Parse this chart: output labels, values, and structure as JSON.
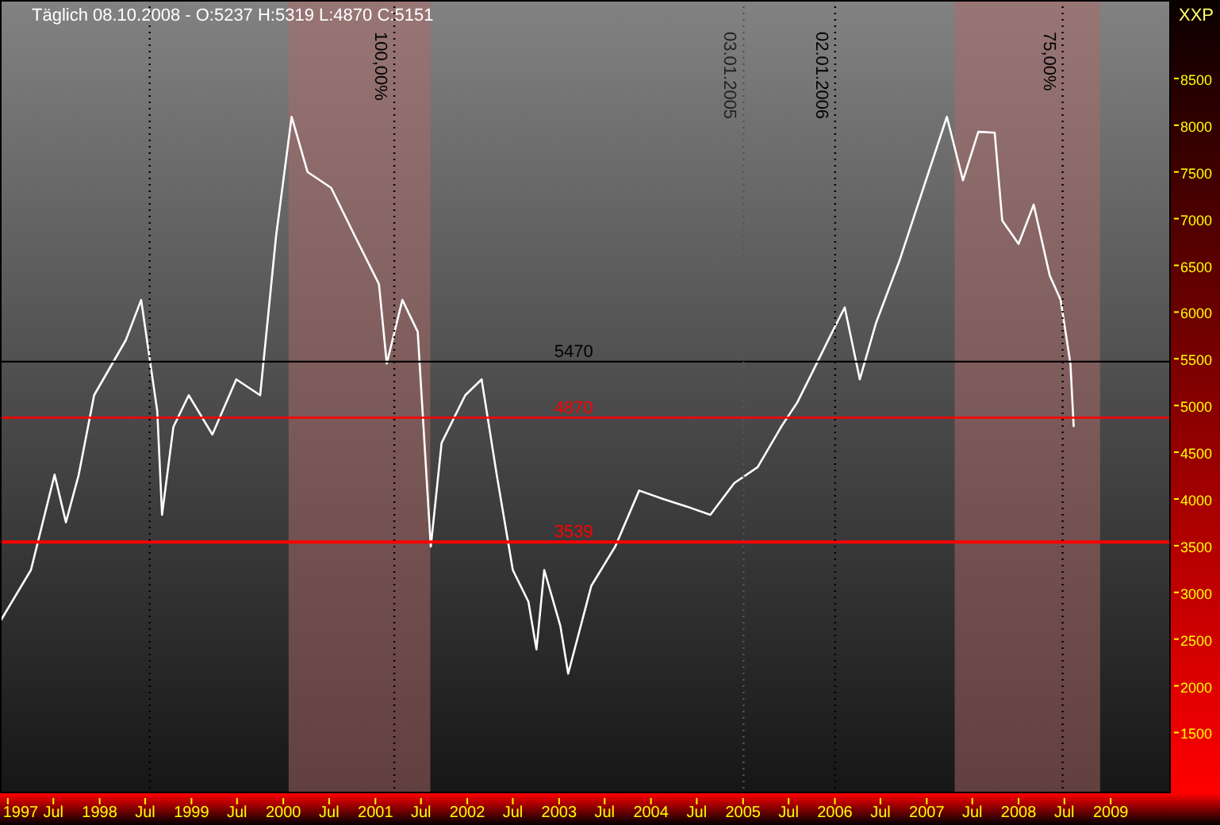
{
  "chart_data": {
    "type": "line",
    "title": "Täglich 08.10.2008 - O:5237 H:5319 L:4870 C:5151",
    "ylabel": "XXP",
    "x": [
      "1996-12-02",
      "1997-04-03",
      "1997-07-06",
      "1997-08-20",
      "1997-10-10",
      "1997-12-10",
      "1998-04-15",
      "1998-06-15",
      "1998-08-18",
      "1998-09-06",
      "1998-10-21",
      "1998-12-21",
      "1999-03-25",
      "1999-06-28",
      "1999-10-01",
      "1999-12-03",
      "2000-02-03",
      "2000-04-06",
      "2000-07-09",
      "2000-10-12",
      "2001-01-15",
      "2001-02-15",
      "2001-04-18",
      "2001-06-18",
      "2001-08-09",
      "2001-09-21",
      "2001-12-24",
      "2002-02-27",
      "2002-04-28",
      "2002-07-01",
      "2002-09-01",
      "2002-10-03",
      "2002-11-03",
      "2003-01-06",
      "2003-02-06",
      "2003-05-09",
      "2003-08-12",
      "2003-11-15",
      "2004-02-18",
      "2004-05-21",
      "2004-08-24",
      "2004-11-27",
      "2005-02-28",
      "2005-06-01",
      "2005-08-04",
      "2005-10-06",
      "2005-12-07",
      "2006-02-09",
      "2006-04-10",
      "2006-06-13",
      "2006-09-16",
      "2006-12-19",
      "2007-03-22",
      "2007-05-25",
      "2007-07-25",
      "2007-09-28",
      "2007-10-28",
      "2008-01-01",
      "2008-03-01",
      "2008-05-04",
      "2008-06-16",
      "2008-07-25",
      "2008-08-07"
    ],
    "series": [
      {
        "color": "#ffffff",
        "values": [
          2690,
          3240,
          4260,
          3750,
          4260,
          5110,
          5700,
          6130,
          4940,
          3830,
          4770,
          5110,
          4690,
          5280,
          5110,
          6810,
          8090,
          7500,
          7330,
          6810,
          6300,
          5450,
          6130,
          5790,
          3490,
          4600,
          5110,
          5280,
          4260,
          3240,
          2900,
          2390,
          3240,
          2640,
          2130,
          3070,
          3490,
          4090,
          4000,
          3920,
          3830,
          4170,
          4340,
          4770,
          5030,
          5370,
          5710,
          6050,
          5280,
          5880,
          6560,
          7330,
          8090,
          7410,
          7930,
          7920,
          6980,
          6730,
          7150,
          6390,
          6130,
          5450,
          4770
        ]
      }
    ],
    "xlim": [
      "1996-12-01",
      "2009-08-28"
    ],
    "xticks": [
      {
        "value": "1997-01-01",
        "label": "1997"
      },
      {
        "value": "1997-07-01",
        "label": "Jul"
      },
      {
        "value": "1998-01-01",
        "label": "1998"
      },
      {
        "value": "1998-07-01",
        "label": "Jul"
      },
      {
        "value": "1999-01-01",
        "label": "1999"
      },
      {
        "value": "1999-07-01",
        "label": "Jul"
      },
      {
        "value": "2000-01-01",
        "label": "2000"
      },
      {
        "value": "2000-07-01",
        "label": "Jul"
      },
      {
        "value": "2001-01-01",
        "label": "2001"
      },
      {
        "value": "2001-07-01",
        "label": "Jul"
      },
      {
        "value": "2002-01-01",
        "label": "2002"
      },
      {
        "value": "2002-07-01",
        "label": "Jul"
      },
      {
        "value": "2003-01-01",
        "label": "2003"
      },
      {
        "value": "2003-07-01",
        "label": "Jul"
      },
      {
        "value": "2004-01-01",
        "label": "2004"
      },
      {
        "value": "2004-07-01",
        "label": "Jul"
      },
      {
        "value": "2005-01-01",
        "label": "2005"
      },
      {
        "value": "2005-07-01",
        "label": "Jul"
      },
      {
        "value": "2006-01-01",
        "label": "2006"
      },
      {
        "value": "2006-07-01",
        "label": "Jul"
      },
      {
        "value": "2007-01-01",
        "label": "2007"
      },
      {
        "value": "2007-07-01",
        "label": "Jul"
      },
      {
        "value": "2008-01-01",
        "label": "2008"
      },
      {
        "value": "2008-07-01",
        "label": "Jul"
      },
      {
        "value": "2009-01-01",
        "label": "2009"
      }
    ],
    "ylim": [
      850,
      9340
    ],
    "yticks": [
      1500,
      2000,
      2500,
      3000,
      3500,
      4000,
      4500,
      5000,
      5500,
      6000,
      6500,
      7000,
      7500,
      8000,
      8500
    ],
    "ref_lines": [
      {
        "axis": "y",
        "value": 5470,
        "label": "5470",
        "color": "#000000"
      },
      {
        "axis": "y",
        "value": 4870,
        "label": "4870",
        "color": "#ff0000"
      },
      {
        "axis": "y",
        "value": 3539,
        "label": "3539",
        "color": "#ff0000"
      },
      {
        "axis": "x",
        "value": "1998-07-19",
        "label": null,
        "color": "#000000",
        "line_style": "dotted"
      },
      {
        "axis": "x",
        "value": "2001-03-17",
        "label": "100,00%",
        "color": "#000000",
        "line_style": "dotted"
      },
      {
        "axis": "x",
        "value": "2005-01-03",
        "label": "03.01.2005",
        "color": "#555555",
        "line_style": "dotted"
      },
      {
        "axis": "x",
        "value": "2006-01-02",
        "label": "02.01.2006",
        "color": "#000000",
        "line_style": "dotted"
      },
      {
        "axis": "x",
        "value": "2008-06-24",
        "label": "75,00%",
        "color": "#000000",
        "line_style": "dotted"
      }
    ],
    "bands": [
      {
        "axis": "x",
        "from": "2000-01-22",
        "to": "2001-08-07",
        "color": "#b06a6a"
      },
      {
        "axis": "x",
        "from": "2007-04-22",
        "to": "2008-11-20",
        "color": "#b06a6a"
      }
    ],
    "grid": false,
    "line_style": "solid",
    "marker": "none"
  }
}
